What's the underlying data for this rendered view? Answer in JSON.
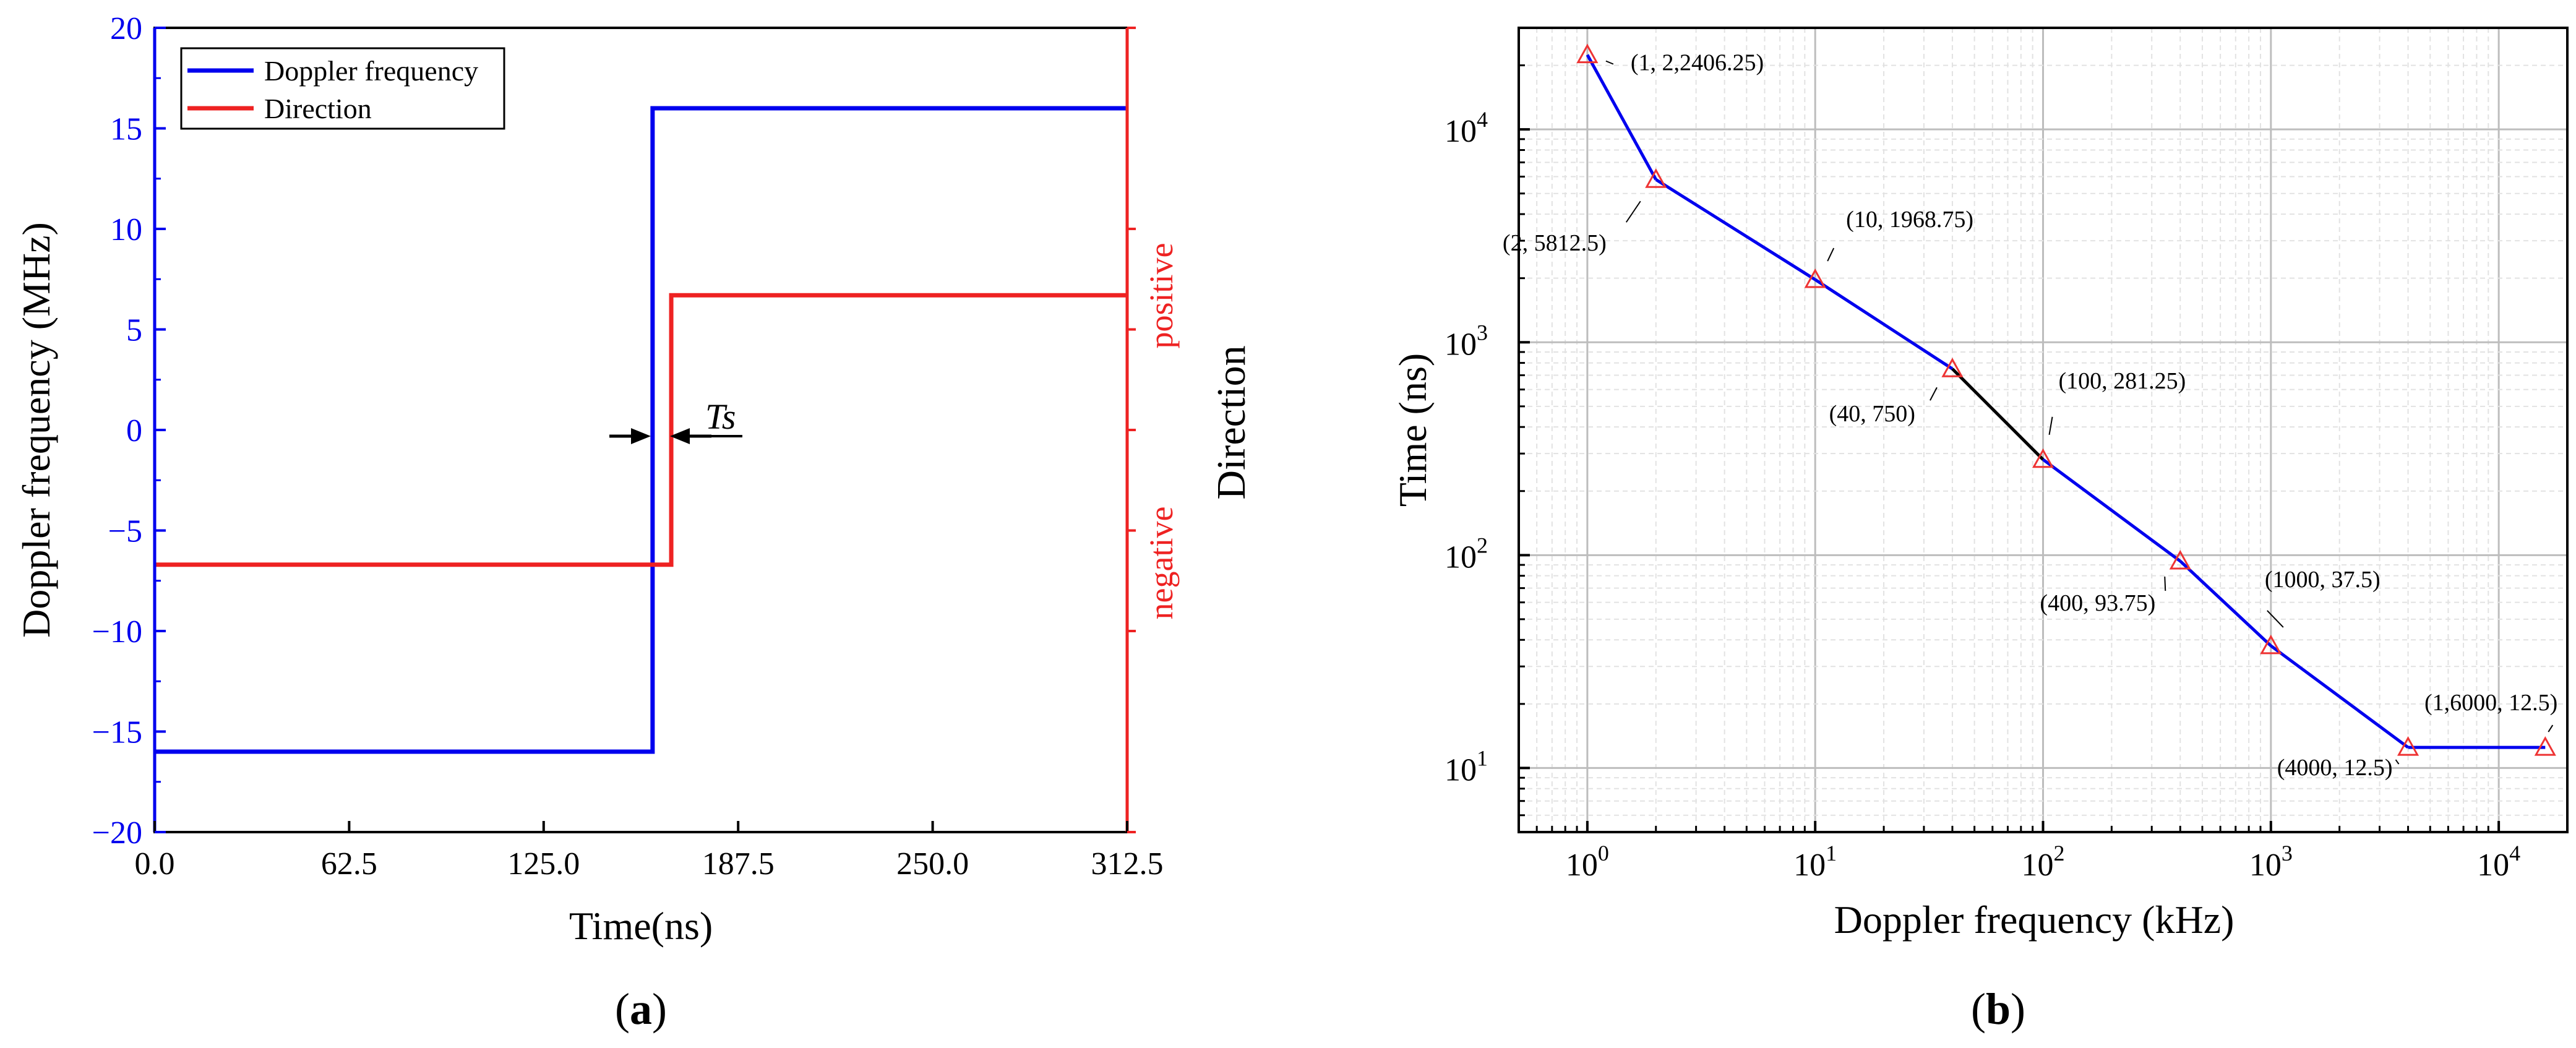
{
  "chart_data": [
    {
      "panel_label": "a",
      "type": "line",
      "x_label": "Time(ns)",
      "y_label": "Doppler frequency (MHz)",
      "y2_label": "Direction",
      "y2_levels": [
        "positive",
        "negative"
      ],
      "x_range": [
        0,
        312.5
      ],
      "y_range": [
        -20,
        20
      ],
      "x_ticks": [
        "0.0",
        "62.5",
        "125.0",
        "187.5",
        "250.0",
        "312.5"
      ],
      "y_ticks": [
        "20",
        "15",
        "10",
        "5",
        "0",
        "−5",
        "−10",
        "−15",
        "−20"
      ],
      "grid": false,
      "legend_position": "top-left",
      "series": [
        {
          "name": "Doppler frequency",
          "color": "#0000ee",
          "x": [
            0,
            160,
            160,
            312.5
          ],
          "y": [
            -16,
            -16,
            16,
            16
          ]
        },
        {
          "name": "Direction",
          "color": "#ee2222",
          "x": [
            0,
            166,
            166,
            312.5
          ],
          "y": [
            -6.7,
            -6.7,
            6.7,
            6.7
          ]
        }
      ],
      "annotation": {
        "text": "Ts",
        "y": 0,
        "x_start": 160,
        "x_end": 166
      }
    },
    {
      "panel_label": "b",
      "type": "line",
      "x_label": "Doppler frequency (kHz)",
      "y_label": "Time (ns)",
      "x_scale": "log",
      "y_scale": "log",
      "x_range": [
        0.5,
        20000
      ],
      "y_range": [
        5,
        30000
      ],
      "x_ticks": [
        {
          "base": "10",
          "exp": "0"
        },
        {
          "base": "10",
          "exp": "1"
        },
        {
          "base": "10",
          "exp": "2"
        },
        {
          "base": "10",
          "exp": "3"
        },
        {
          "base": "10",
          "exp": "4"
        }
      ],
      "y_ticks": [
        {
          "base": "10",
          "exp": "1"
        },
        {
          "base": "10",
          "exp": "2"
        },
        {
          "base": "10",
          "exp": "3"
        },
        {
          "base": "10",
          "exp": "4"
        }
      ],
      "grid": true,
      "line_color": "#0000ee",
      "segment_color_40_to_100": "#000000",
      "marker_color": "#ee3333",
      "points": [
        {
          "x": 1,
          "y": 22406.25,
          "label": "(1,  2,2406.25)"
        },
        {
          "x": 2,
          "y": 5812.5,
          "label": "(2,  5812.5)"
        },
        {
          "x": 10,
          "y": 1968.75,
          "label": "(10,  1968.75)"
        },
        {
          "x": 40,
          "y": 750,
          "label": "(40,  750)"
        },
        {
          "x": 100,
          "y": 281.25,
          "label": "(100,  281.25)"
        },
        {
          "x": 400,
          "y": 93.75,
          "label": "(400,  93.75)"
        },
        {
          "x": 1000,
          "y": 37.5,
          "label": "(1000,  37.5)"
        },
        {
          "x": 4000,
          "y": 12.5,
          "label": "(4000,  12.5)"
        },
        {
          "x": 16000,
          "y": 12.5,
          "label": "(1,6000,  12.5)"
        }
      ]
    }
  ]
}
